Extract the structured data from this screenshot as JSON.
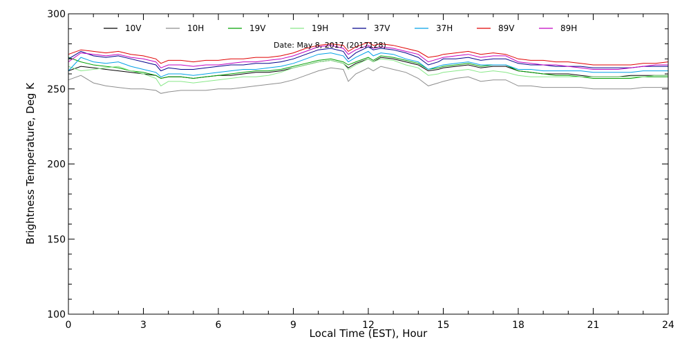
{
  "chart_data": {
    "type": "line",
    "title": "",
    "annotation": "Date: May  8, 2017 (2017128)",
    "xlabel": "Local Time (EST), Hour",
    "ylabel": "Brightness Temperature, Deg K",
    "xlim": [
      0,
      24
    ],
    "ylim": [
      100,
      300
    ],
    "x_ticks": [
      0,
      3,
      6,
      9,
      12,
      15,
      18,
      21,
      24
    ],
    "x_tick_labels": [
      "0",
      "3",
      "6",
      "9",
      "12",
      "15",
      "18",
      "21",
      "24"
    ],
    "y_ticks": [
      100,
      150,
      200,
      250,
      300
    ],
    "y_tick_labels": [
      "100",
      "150",
      "200",
      "250",
      "300"
    ],
    "grid": false,
    "legend_position": "top",
    "x": [
      0,
      0.5,
      1,
      1.5,
      2,
      2.5,
      3,
      3.5,
      3.7,
      4,
      4.5,
      5,
      5.5,
      6,
      6.5,
      7,
      7.5,
      8,
      8.5,
      9,
      9.5,
      10,
      10.5,
      11,
      11.2,
      11.5,
      12,
      12.2,
      12.5,
      13,
      13.5,
      14,
      14.4,
      14.8,
      15,
      15.5,
      16,
      16.5,
      17,
      17.5,
      18,
      18.5,
      19,
      19.5,
      20,
      20.5,
      21,
      21.5,
      22,
      22.5,
      23,
      23.5,
      24
    ],
    "series": [
      {
        "name": "10V",
        "color": "#000000",
        "values": [
          262,
          265,
          264,
          263,
          262,
          261,
          260,
          259,
          257,
          258,
          258,
          257,
          258,
          259,
          259,
          260,
          261,
          261,
          262,
          264,
          266,
          268,
          269,
          267,
          264,
          267,
          270,
          268,
          271,
          270,
          268,
          266,
          262,
          263,
          264,
          265,
          266,
          264,
          265,
          265,
          262,
          261,
          260,
          260,
          260,
          259,
          258,
          258,
          258,
          259,
          259,
          259,
          259
        ]
      },
      {
        "name": "10H",
        "color": "#8c8c8c",
        "values": [
          256,
          259,
          254,
          252,
          251,
          250,
          250,
          249,
          247,
          248,
          249,
          249,
          249,
          250,
          250,
          251,
          252,
          253,
          254,
          256,
          259,
          262,
          264,
          263,
          255,
          260,
          264,
          262,
          265,
          263,
          261,
          257,
          252,
          254,
          255,
          257,
          258,
          255,
          256,
          256,
          252,
          252,
          251,
          251,
          251,
          251,
          250,
          250,
          250,
          250,
          251,
          251,
          251
        ]
      },
      {
        "name": "19V",
        "color": "#00a000",
        "values": [
          271,
          268,
          266,
          265,
          264,
          262,
          261,
          259,
          257,
          258,
          258,
          257,
          258,
          259,
          260,
          261,
          262,
          262,
          263,
          265,
          267,
          269,
          270,
          268,
          266,
          268,
          271,
          269,
          272,
          271,
          269,
          267,
          263,
          264,
          265,
          266,
          267,
          265,
          266,
          266,
          262,
          261,
          260,
          259,
          259,
          258,
          257,
          257,
          257,
          257,
          258,
          258,
          258
        ]
      },
      {
        "name": "19H",
        "color": "#88e888",
        "values": [
          265,
          262,
          263,
          264,
          265,
          262,
          260,
          257,
          252,
          255,
          255,
          254,
          255,
          256,
          257,
          258,
          258,
          259,
          261,
          264,
          266,
          268,
          269,
          267,
          263,
          266,
          270,
          268,
          270,
          269,
          266,
          264,
          259,
          260,
          261,
          262,
          263,
          261,
          262,
          261,
          259,
          258,
          258,
          258,
          258,
          258,
          258,
          258,
          258,
          258,
          258,
          259,
          259
        ]
      },
      {
        "name": "37V",
        "color": "#00008b",
        "values": [
          270,
          275,
          272,
          271,
          272,
          270,
          268,
          266,
          262,
          264,
          263,
          263,
          264,
          265,
          266,
          266,
          267,
          267,
          268,
          270,
          273,
          276,
          277,
          275,
          270,
          274,
          278,
          276,
          277,
          276,
          274,
          271,
          266,
          268,
          270,
          270,
          271,
          269,
          270,
          270,
          267,
          266,
          266,
          265,
          265,
          265,
          264,
          264,
          264,
          264,
          265,
          265,
          265
        ]
      },
      {
        "name": "37H",
        "color": "#00a0e6",
        "values": [
          262,
          271,
          268,
          267,
          268,
          265,
          263,
          261,
          258,
          260,
          260,
          259,
          260,
          261,
          262,
          263,
          263,
          264,
          265,
          267,
          270,
          273,
          274,
          272,
          268,
          271,
          275,
          272,
          274,
          273,
          270,
          268,
          263,
          265,
          266,
          267,
          268,
          266,
          266,
          266,
          263,
          263,
          262,
          262,
          262,
          262,
          261,
          261,
          261,
          261,
          262,
          262,
          262
        ]
      },
      {
        "name": "89V",
        "color": "#e00000",
        "values": [
          273,
          276,
          275,
          274,
          275,
          273,
          272,
          270,
          267,
          269,
          269,
          268,
          269,
          269,
          270,
          270,
          271,
          271,
          272,
          274,
          277,
          279,
          280,
          279,
          275,
          278,
          281,
          279,
          280,
          279,
          277,
          275,
          271,
          272,
          273,
          274,
          275,
          273,
          274,
          273,
          270,
          269,
          269,
          268,
          268,
          267,
          266,
          266,
          266,
          266,
          267,
          267,
          268
        ]
      },
      {
        "name": "89H",
        "color": "#c000c0",
        "values": [
          268,
          274,
          273,
          272,
          273,
          271,
          270,
          268,
          264,
          266,
          266,
          265,
          266,
          266,
          267,
          268,
          268,
          269,
          270,
          272,
          275,
          278,
          279,
          277,
          273,
          276,
          279,
          277,
          278,
          277,
          275,
          273,
          268,
          270,
          271,
          272,
          273,
          271,
          272,
          272,
          268,
          267,
          266,
          266,
          265,
          264,
          263,
          263,
          263,
          264,
          265,
          266,
          266
        ]
      }
    ]
  }
}
